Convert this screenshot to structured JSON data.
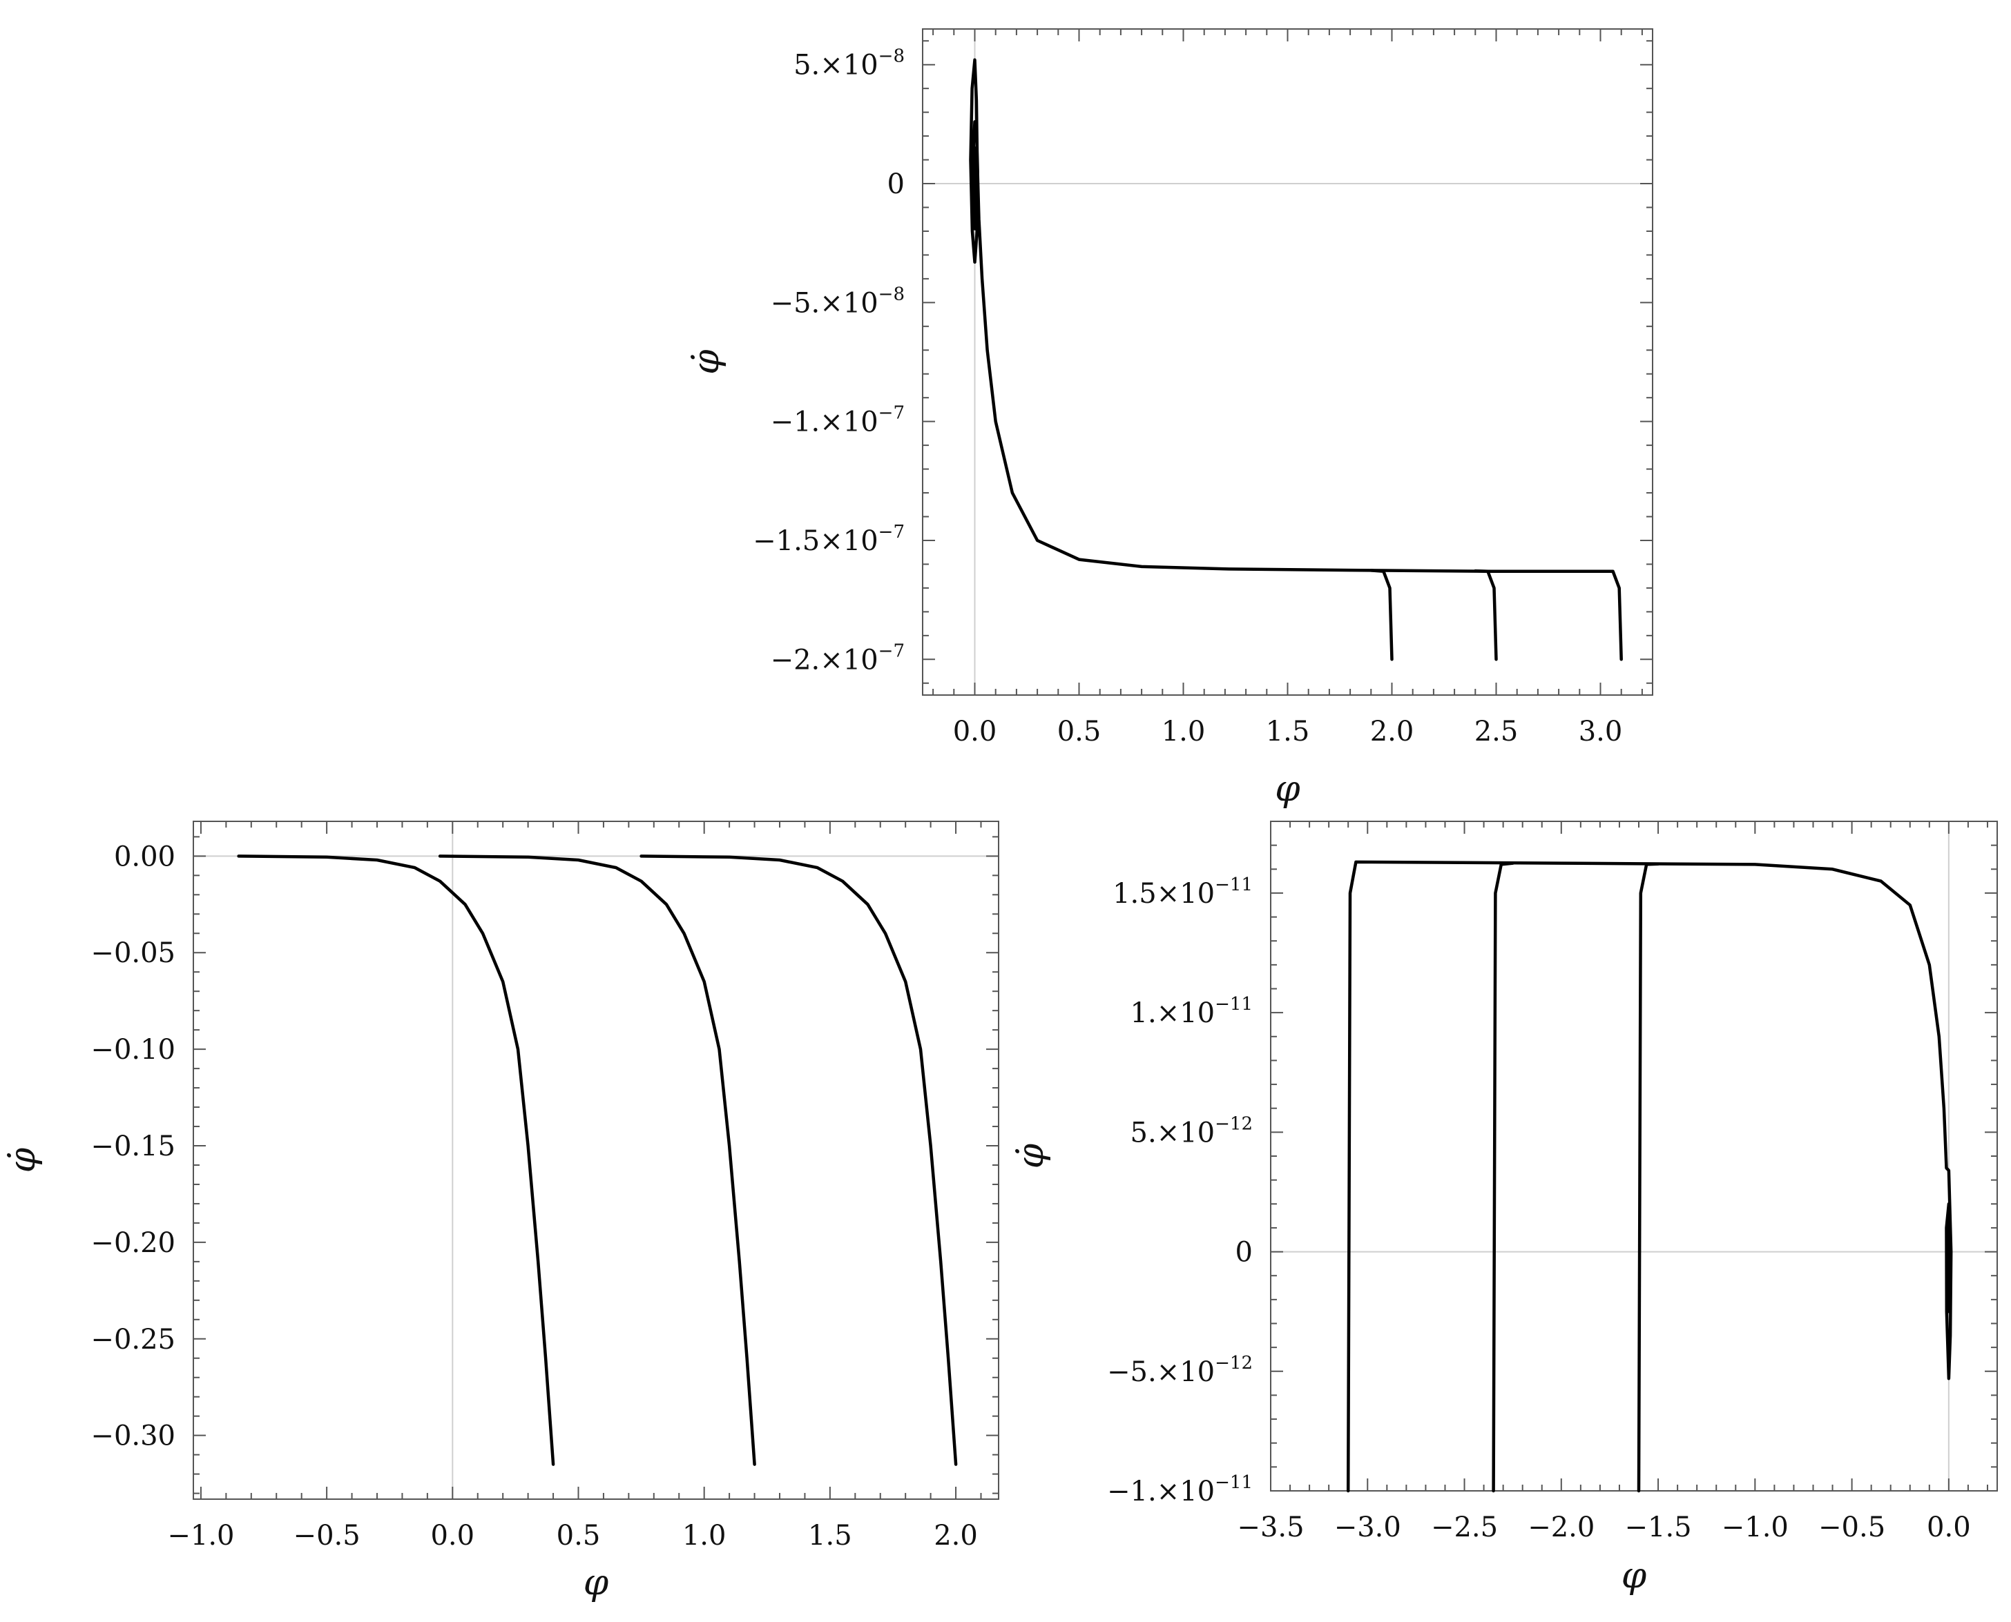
{
  "chart_data": [
    {
      "type": "line",
      "xlabel": "φ",
      "ylabel": "φ̇",
      "xlim": [
        -0.25,
        3.25
      ],
      "ylim": [
        -2.15e-07,
        6.5e-08
      ],
      "x_ticks": [
        0.0,
        0.5,
        1.0,
        1.5,
        2.0,
        2.5,
        3.0
      ],
      "x_tick_labels": [
        "0.0",
        "0.5",
        "1.0",
        "1.5",
        "2.0",
        "2.5",
        "3.0"
      ],
      "y_ticks": [
        5e-08,
        0,
        -5e-08,
        -1e-07,
        -1.5e-07,
        -2e-07
      ],
      "y_tick_labels": [
        {
          "mant": "5.×10",
          "exp": "−8"
        },
        {
          "mant": "0",
          "exp": ""
        },
        {
          "mant": "−5.×10",
          "exp": "−8"
        },
        {
          "mant": "−1.×10",
          "exp": "−7"
        },
        {
          "mant": "−1.5×10",
          "exp": "−7"
        },
        {
          "mant": "−2.×10",
          "exp": "−7"
        }
      ],
      "grid": false,
      "series": [
        {
          "points": [
            [
              3.1,
              -2e-07
            ],
            [
              3.09,
              -1.7e-07
            ],
            [
              3.06,
              -1.63e-07
            ],
            [
              2.5,
              -1.63e-07
            ],
            [
              1.8,
              -1.625e-07
            ],
            [
              1.2,
              -1.62e-07
            ],
            [
              0.8,
              -1.61e-07
            ],
            [
              0.5,
              -1.58e-07
            ],
            [
              0.3,
              -1.5e-07
            ],
            [
              0.18,
              -1.3e-07
            ],
            [
              0.1,
              -1e-07
            ],
            [
              0.06,
              -7e-08
            ],
            [
              0.035,
              -4e-08
            ],
            [
              0.02,
              -1.5e-08
            ],
            [
              0.012,
              1e-08
            ],
            [
              0.008,
              3.5e-08
            ],
            [
              0.0,
              5.2e-08
            ],
            [
              -0.013,
              4e-08
            ],
            [
              -0.02,
              1e-08
            ],
            [
              -0.012,
              -2e-08
            ],
            [
              0.0,
              -3.3e-08
            ],
            [
              0.011,
              -2e-08
            ],
            [
              0.014,
              5e-09
            ],
            [
              0.008,
              2.5e-08
            ],
            [
              0.0,
              2.6e-08
            ],
            [
              -0.009,
              1e-08
            ],
            [
              -0.007,
              -1.2e-08
            ],
            [
              0.0,
              -1.9e-08
            ],
            [
              0.007,
              -5e-09
            ],
            [
              0.004,
              1.4e-08
            ],
            [
              0.0,
              1.5e-08
            ],
            [
              -0.005,
              0.0
            ],
            [
              0.0,
              -1e-08
            ],
            [
              0.004,
              0.0
            ],
            [
              0.0,
              5e-09
            ]
          ]
        },
        {
          "points": [
            [
              2.5,
              -2e-07
            ],
            [
              2.49,
              -1.7e-07
            ],
            [
              2.46,
              -1.63e-07
            ],
            [
              2.4,
              -1.628e-07
            ]
          ]
        },
        {
          "points": [
            [
              2.0,
              -2e-07
            ],
            [
              1.99,
              -1.7e-07
            ],
            [
              1.96,
              -1.63e-07
            ],
            [
              1.9,
              -1.626e-07
            ]
          ]
        }
      ]
    },
    {
      "type": "line",
      "xlabel": "φ",
      "ylabel": "φ̇",
      "xlim": [
        -1.03,
        2.17
      ],
      "ylim": [
        -0.333,
        0.018
      ],
      "x_ticks": [
        -1.0,
        -0.5,
        0.0,
        0.5,
        1.0,
        1.5,
        2.0
      ],
      "x_tick_labels": [
        "−1.0",
        "−0.5",
        "0.0",
        "0.5",
        "1.0",
        "1.5",
        "2.0"
      ],
      "y_ticks": [
        0.0,
        -0.05,
        -0.1,
        -0.15,
        -0.2,
        -0.25,
        -0.3
      ],
      "y_tick_labels": [
        "0.00",
        "−0.05",
        "−0.10",
        "−0.15",
        "−0.20",
        "−0.25",
        "−0.30"
      ],
      "grid": false,
      "series": [
        {
          "points": [
            [
              -0.85,
              0.0
            ],
            [
              -0.5,
              -0.0005
            ],
            [
              -0.3,
              -0.002
            ],
            [
              -0.15,
              -0.006
            ],
            [
              -0.05,
              -0.013
            ],
            [
              0.05,
              -0.025
            ],
            [
              0.12,
              -0.04
            ],
            [
              0.2,
              -0.065
            ],
            [
              0.26,
              -0.1
            ],
            [
              0.3,
              -0.15
            ],
            [
              0.34,
              -0.21
            ],
            [
              0.37,
              -0.26
            ],
            [
              0.4,
              -0.315
            ]
          ]
        },
        {
          "points": [
            [
              -0.05,
              0.0
            ],
            [
              0.3,
              -0.0005
            ],
            [
              0.5,
              -0.002
            ],
            [
              0.65,
              -0.006
            ],
            [
              0.75,
              -0.013
            ],
            [
              0.85,
              -0.025
            ],
            [
              0.92,
              -0.04
            ],
            [
              1.0,
              -0.065
            ],
            [
              1.06,
              -0.1
            ],
            [
              1.1,
              -0.15
            ],
            [
              1.14,
              -0.21
            ],
            [
              1.17,
              -0.26
            ],
            [
              1.2,
              -0.315
            ]
          ]
        },
        {
          "points": [
            [
              0.75,
              0.0
            ],
            [
              1.1,
              -0.0005
            ],
            [
              1.3,
              -0.002
            ],
            [
              1.45,
              -0.006
            ],
            [
              1.55,
              -0.013
            ],
            [
              1.65,
              -0.025
            ],
            [
              1.72,
              -0.04
            ],
            [
              1.8,
              -0.065
            ],
            [
              1.86,
              -0.1
            ],
            [
              1.9,
              -0.15
            ],
            [
              1.94,
              -0.21
            ],
            [
              1.97,
              -0.26
            ],
            [
              2.0,
              -0.315
            ]
          ]
        }
      ]
    },
    {
      "type": "line",
      "xlabel": "φ",
      "ylabel": "φ̇",
      "xlim": [
        -3.5,
        0.25
      ],
      "ylim": [
        -1e-11,
        1.8e-11
      ],
      "x_ticks": [
        -3.5,
        -3.0,
        -2.5,
        -2.0,
        -1.5,
        -1.0,
        -0.5,
        0.0
      ],
      "x_tick_labels": [
        "−3.5",
        "−3.0",
        "−2.5",
        "−2.0",
        "−1.5",
        "−1.0",
        "−0.5",
        "0.0"
      ],
      "y_ticks": [
        1.5e-11,
        1e-11,
        5e-12,
        0,
        -5e-12,
        -1e-11
      ],
      "y_tick_labels": [
        {
          "mant": "1.5×10",
          "exp": "−11"
        },
        {
          "mant": "1.×10",
          "exp": "−11"
        },
        {
          "mant": "5.×10",
          "exp": "−12"
        },
        {
          "mant": "0",
          "exp": ""
        },
        {
          "mant": "−5.×10",
          "exp": "−12"
        },
        {
          "mant": "−1.×10",
          "exp": "−11"
        }
      ],
      "grid": false,
      "series": [
        {
          "points": [
            [
              -3.1,
              -1e-11
            ],
            [
              -3.09,
              1.5e-11
            ],
            [
              -3.06,
              1.63e-11
            ],
            [
              -2.0,
              1.625e-11
            ],
            [
              -1.0,
              1.62e-11
            ],
            [
              -0.6,
              1.6e-11
            ],
            [
              -0.35,
              1.55e-11
            ],
            [
              -0.2,
              1.45e-11
            ],
            [
              -0.1,
              1.2e-11
            ],
            [
              -0.05,
              9e-12
            ],
            [
              -0.025,
              6e-12
            ],
            [
              -0.012,
              3.5e-12
            ],
            [
              0.0,
              3.4e-12
            ],
            [
              0.012,
              0.0
            ],
            [
              0.008,
              -3.5e-12
            ],
            [
              0.0,
              -5.3e-12
            ],
            [
              -0.011,
              -2.5e-12
            ],
            [
              -0.012,
              1e-12
            ],
            [
              0.0,
              2e-12
            ],
            [
              0.008,
              0.0
            ],
            [
              0.0,
              -2.5e-12
            ],
            [
              -0.006,
              0.0
            ],
            [
              0.0,
              1e-12
            ],
            [
              0.004,
              0.0
            ]
          ]
        },
        {
          "points": [
            [
              -2.35,
              -1e-11
            ],
            [
              -2.34,
              1.5e-11
            ],
            [
              -2.31,
              1.62e-11
            ],
            [
              -2.25,
              1.625e-11
            ]
          ]
        },
        {
          "points": [
            [
              -1.6,
              -1e-11
            ],
            [
              -1.59,
              1.5e-11
            ],
            [
              -1.56,
              1.62e-11
            ],
            [
              -1.5,
              1.622e-11
            ]
          ]
        }
      ]
    }
  ]
}
